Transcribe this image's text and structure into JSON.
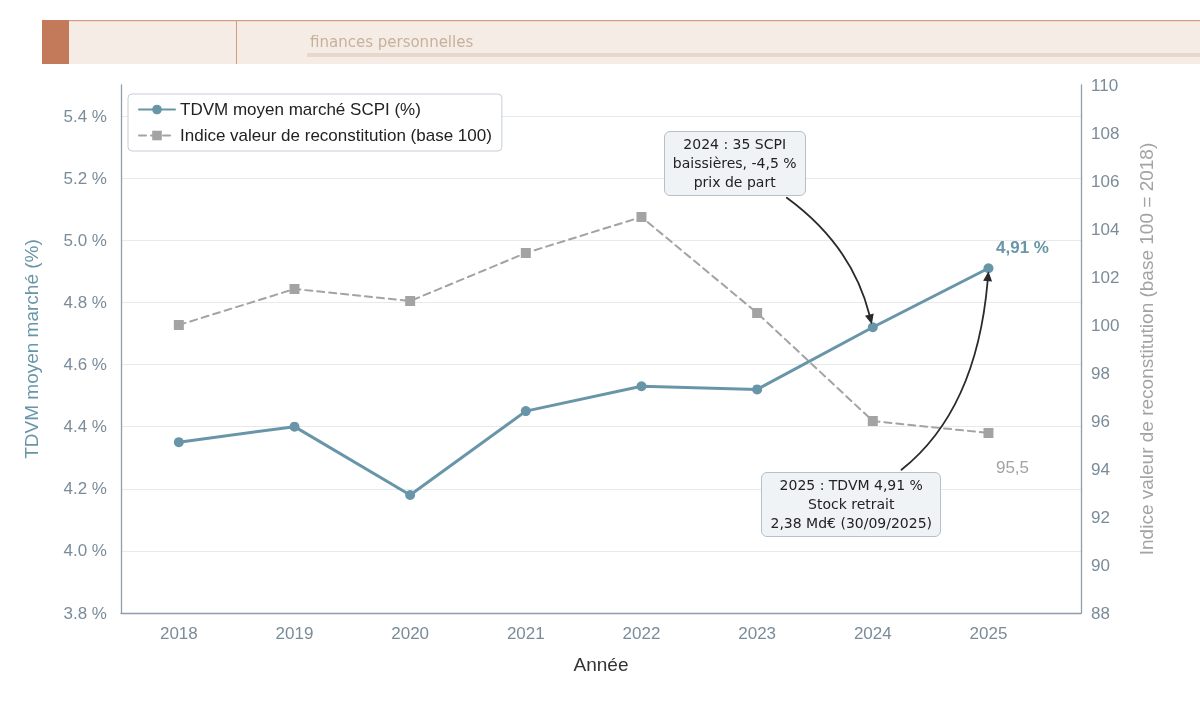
{
  "chart_data": {
    "type": "line",
    "annotations": [
      "finances personnelles",
      "2024 : 35 SCPI\nbaissières, -4,5 %\nprix de part",
      "2025 : TDVM 4,91 %\nStock retrait\n2,38 Md€ (30/09/2025)"
    ],
    "xlabel": "Année",
    "ylabel": "TDVM moyen marché (%)",
    "y2label": "Indice valeur de reconstitution (base 100 = 2018)",
    "x": [
      2018,
      2019,
      2020,
      2021,
      2022,
      2023,
      2024,
      2025
    ],
    "series": [
      {
        "name": "TDVM moyen marché SCPI (%)",
        "color": "#6896a8",
        "values": [
          4.35,
          4.4,
          4.18,
          4.45,
          4.53,
          4.52,
          4.72,
          4.91
        ],
        "value_labels": [
          null,
          null,
          null,
          null,
          null,
          null,
          null,
          "4,91 %"
        ],
        "marker": "circle",
        "line_style": "solid"
      },
      {
        "name": "Indice valeur de reconstitution (base 100)",
        "color": "#a3a3a3",
        "axis": "y2",
        "values": [
          100,
          101.5,
          101,
          103,
          104.5,
          100.5,
          96,
          95.5
        ],
        "value_labels": [
          null,
          null,
          null,
          null,
          null,
          null,
          null,
          "95,5"
        ],
        "marker": "square",
        "line_style": "dashed"
      }
    ],
    "xlim": [
      2017.5,
      2025.8
    ],
    "xticks": [
      2018,
      2019,
      2020,
      2021,
      2022,
      2023,
      2024,
      2025
    ],
    "ylim": [
      3.8,
      5.5
    ],
    "yticks": [
      {
        "value": 3.8,
        "label": "3.8 %"
      },
      {
        "value": 4.0,
        "label": "4.0 %"
      },
      {
        "value": 4.2,
        "label": "4.2 %"
      },
      {
        "value": 4.4,
        "label": "4.4 %"
      },
      {
        "value": 4.6,
        "label": "4.6 %"
      },
      {
        "value": 4.8,
        "label": "4.8 %"
      },
      {
        "value": 5.0,
        "label": "5.0 %"
      },
      {
        "value": 5.2,
        "label": "5.2 %"
      },
      {
        "value": 5.4,
        "label": "5.4 %"
      }
    ],
    "y2lim": [
      88,
      110
    ],
    "y2ticks": [
      88,
      90,
      92,
      94,
      96,
      98,
      100,
      102,
      104,
      106,
      108,
      110
    ],
    "grid": "y",
    "legend": "top left"
  }
}
